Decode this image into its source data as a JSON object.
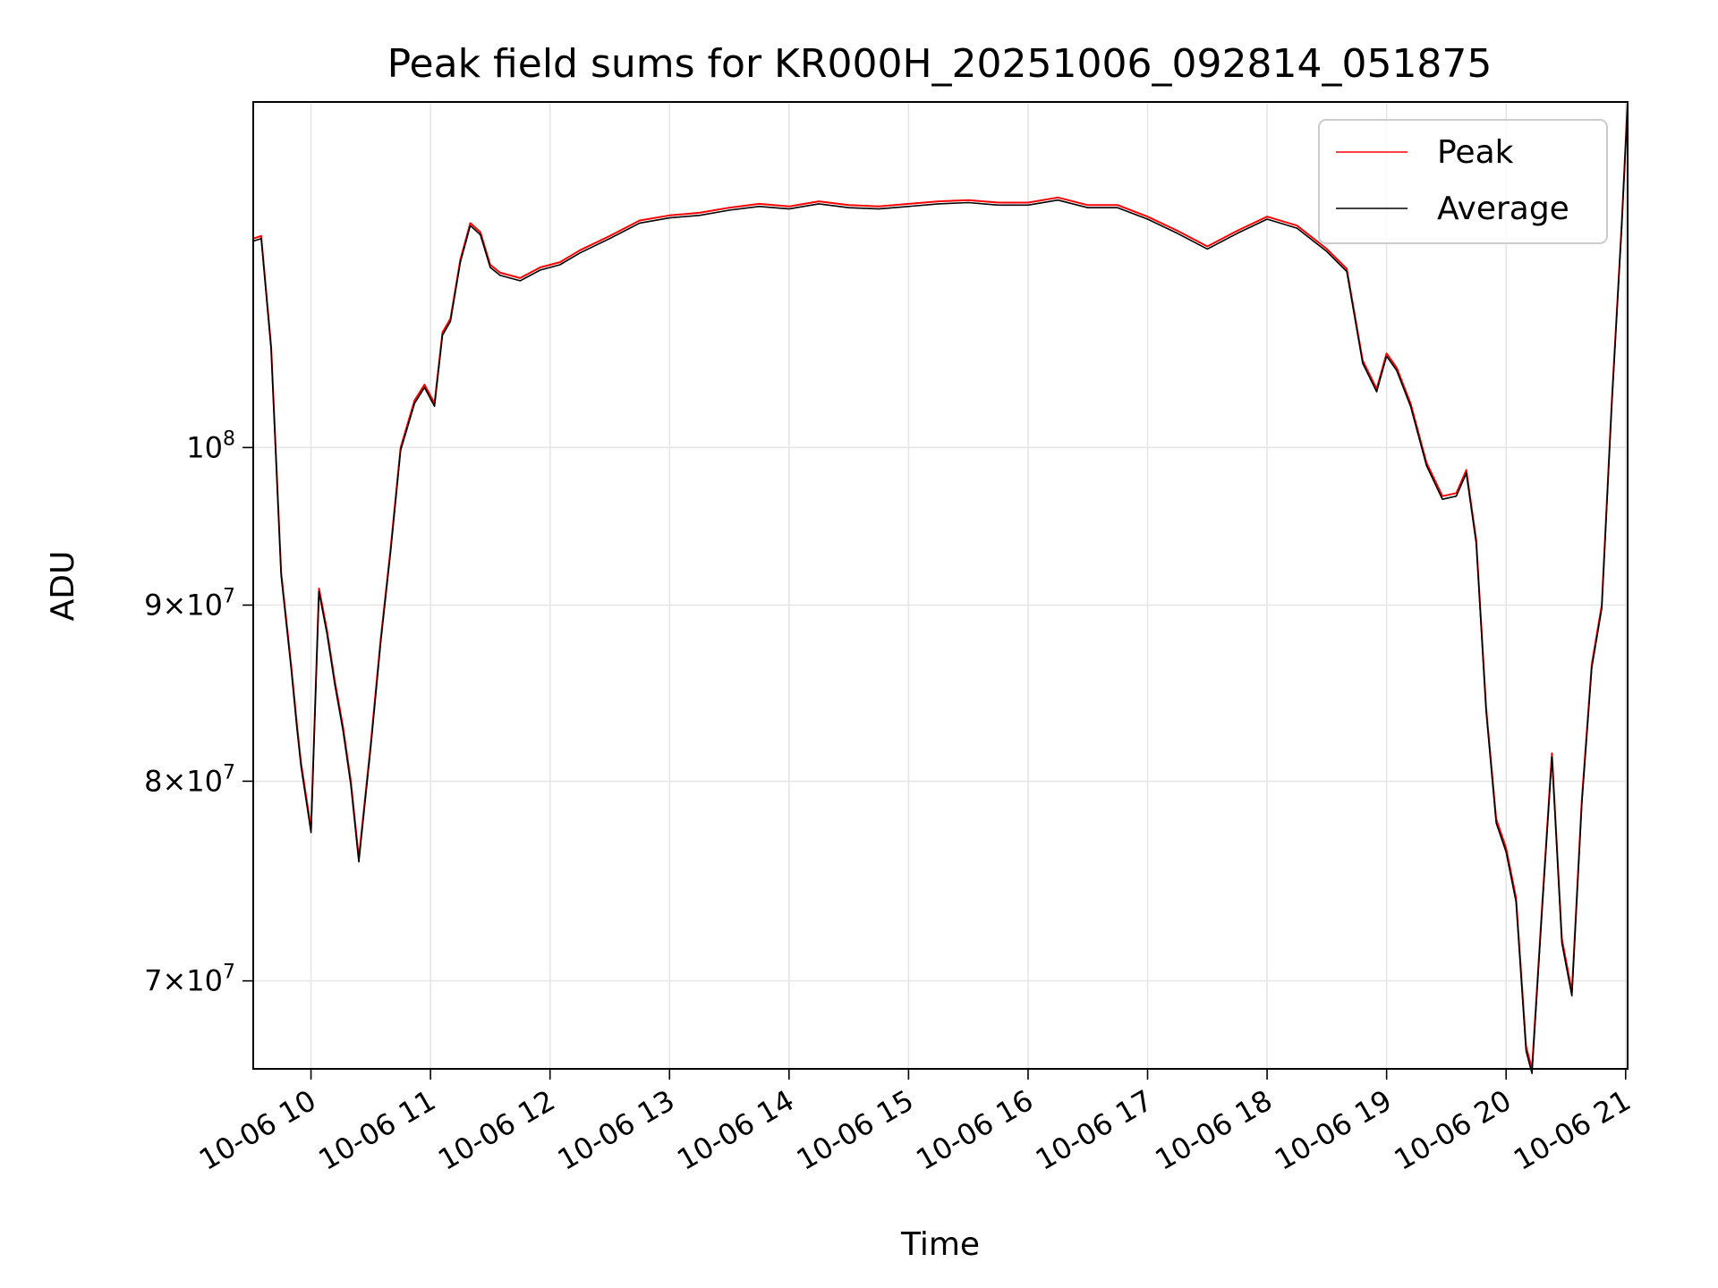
{
  "chart_data": {
    "type": "line",
    "title": "Peak field sums for KR000H_20251006_092814_051875",
    "xlabel": "Time",
    "ylabel": "ADU",
    "yscale": "log",
    "xlim": [
      "10-06 09:31",
      "10-06 21:01"
    ],
    "ylim": [
      66000000,
      126000000
    ],
    "grid": true,
    "legend_position": "top-right",
    "x_ticks": [
      "10-06 10",
      "10-06 11",
      "10-06 12",
      "10-06 13",
      "10-06 14",
      "10-06 15",
      "10-06 16",
      "10-06 17",
      "10-06 18",
      "10-06 19",
      "10-06 20",
      "10-06 21"
    ],
    "y_ticks": [
      {
        "value": 70000000,
        "mantissa": "7",
        "exponent": "7",
        "label": "7×10^7"
      },
      {
        "value": 80000000,
        "mantissa": "8",
        "exponent": "7",
        "label": "8×10^7"
      },
      {
        "value": 90000000,
        "mantissa": "9",
        "exponent": "7",
        "label": "9×10^7"
      },
      {
        "value": 100000000,
        "mantissa": "",
        "exponent": "8",
        "label": "10^8"
      }
    ],
    "x": [
      "09:31",
      "09:35",
      "09:40",
      "09:45",
      "09:50",
      "09:53",
      "09:55",
      "10:00",
      "10:04",
      "10:08",
      "10:12",
      "10:16",
      "10:20",
      "10:24",
      "10:30",
      "10:35",
      "10:40",
      "10:45",
      "10:52",
      "10:57",
      "11:02",
      "11:06",
      "11:10",
      "11:15",
      "11:20",
      "11:25",
      "11:30",
      "11:35",
      "11:45",
      "11:55",
      "12:05",
      "12:15",
      "12:30",
      "12:45",
      "13:00",
      "13:15",
      "13:30",
      "13:45",
      "14:00",
      "14:15",
      "14:30",
      "14:45",
      "15:00",
      "15:15",
      "15:30",
      "15:45",
      "16:00",
      "16:15",
      "16:30",
      "16:45",
      "17:00",
      "17:15",
      "17:30",
      "17:45",
      "18:00",
      "18:15",
      "18:30",
      "18:40",
      "18:48",
      "18:55",
      "19:00",
      "19:05",
      "19:12",
      "19:20",
      "19:28",
      "19:35",
      "19:40",
      "19:45",
      "19:50",
      "19:55",
      "20:00",
      "20:05",
      "20:10",
      "20:13",
      "20:18",
      "20:23",
      "20:28",
      "20:33",
      "20:38",
      "20:43",
      "20:48",
      "20:53",
      "20:58",
      "21:01"
    ],
    "series": [
      {
        "name": "Peak",
        "color": "#ff0000",
        "values": [
          115000000,
          115200000,
          107000000,
          92000000,
          86500000,
          83000000,
          81000000,
          77500000,
          91000000,
          88500000,
          85500000,
          83000000,
          80000000,
          76000000,
          82000000,
          88000000,
          93500000,
          100000000,
          103200000,
          104300000,
          103000000,
          108000000,
          109000000,
          113400000,
          116200000,
          115500000,
          113000000,
          112400000,
          112000000,
          112800000,
          113200000,
          114100000,
          115200000,
          116400000,
          116800000,
          117000000,
          117400000,
          117700000,
          117500000,
          117900000,
          117600000,
          117500000,
          117700000,
          117900000,
          118000000,
          117800000,
          117800000,
          118200000,
          117600000,
          117600000,
          116700000,
          115600000,
          114400000,
          115600000,
          116700000,
          116000000,
          114200000,
          112700000,
          106000000,
          104000000,
          106500000,
          105500000,
          103000000,
          99000000,
          96800000,
          97000000,
          98500000,
          94000000,
          84000000,
          78000000,
          76500000,
          74000000,
          67000000,
          66000000,
          73500000,
          81500000,
          72000000,
          69500000,
          79000000,
          86500000,
          90000000,
          103000000,
          116000000,
          126000000
        ]
      },
      {
        "name": "Average",
        "color": "#000000",
        "values": [
          114800000,
          115000000,
          106800000,
          91800000,
          86300000,
          82800000,
          80800000,
          77300000,
          90800000,
          88300000,
          85300000,
          82800000,
          79800000,
          75800000,
          81800000,
          87800000,
          93300000,
          99800000,
          103000000,
          104100000,
          102800000,
          107800000,
          108800000,
          113200000,
          116000000,
          115300000,
          112800000,
          112200000,
          111800000,
          112600000,
          113000000,
          113900000,
          115000000,
          116200000,
          116600000,
          116800000,
          117200000,
          117500000,
          117300000,
          117700000,
          117400000,
          117300000,
          117500000,
          117700000,
          117800000,
          117600000,
          117600000,
          118000000,
          117400000,
          117400000,
          116500000,
          115400000,
          114200000,
          115400000,
          116500000,
          115800000,
          114000000,
          112500000,
          105800000,
          103800000,
          106300000,
          105300000,
          102800000,
          98800000,
          96600000,
          96800000,
          98300000,
          93800000,
          83800000,
          77800000,
          76300000,
          73800000,
          66800000,
          65800000,
          73300000,
          81300000,
          71800000,
          69300000,
          78800000,
          86300000,
          89800000,
          102800000,
          115800000,
          125800000
        ]
      }
    ]
  }
}
